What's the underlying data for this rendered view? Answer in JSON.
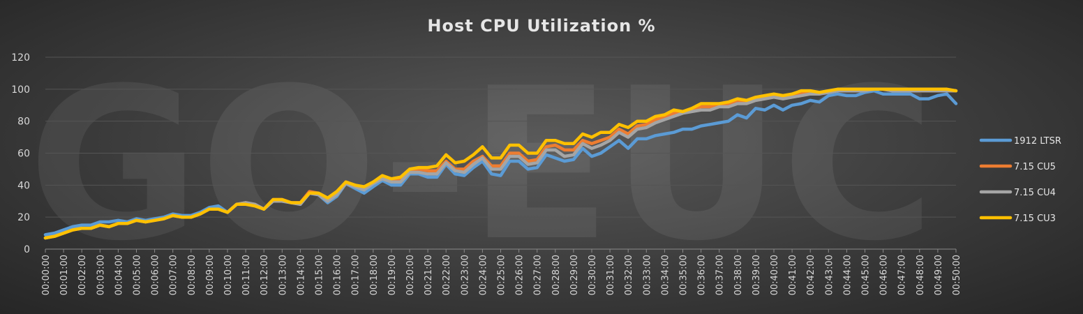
{
  "watermark": "GO-EUC",
  "chart_data": {
    "type": "line",
    "title": "Host CPU Utilization %",
    "xlabel": "",
    "ylabel": "",
    "ylim": [
      0,
      120
    ],
    "yticks": [
      0,
      20,
      40,
      60,
      80,
      100,
      120
    ],
    "grid": true,
    "legend_position": "right",
    "x_tick_labels": [
      "00:00:00",
      "00:01:00",
      "00:02:00",
      "00:03:00",
      "00:04:00",
      "00:05:00",
      "00:06:00",
      "00:07:00",
      "00:08:00",
      "00:09:00",
      "00:10:00",
      "00:11:00",
      "00:12:00",
      "00:13:00",
      "00:14:00",
      "00:15:00",
      "00:16:00",
      "00:17:00",
      "00:18:00",
      "00:19:00",
      "00:20:00",
      "00:21:00",
      "00:22:00",
      "00:23:00",
      "00:24:00",
      "00:25:00",
      "00:26:00",
      "00:27:00",
      "00:28:00",
      "00:29:00",
      "00:30:00",
      "00:31:00",
      "00:32:00",
      "00:33:00",
      "00:34:00",
      "00:35:00",
      "00:36:00",
      "00:37:00",
      "00:38:00",
      "00:39:00",
      "00:40:00",
      "00:41:00",
      "00:42:00",
      "00:43:00",
      "00:44:00",
      "00:45:00",
      "00:46:00",
      "00:47:00",
      "00:48:00",
      "00:49:00",
      "00:50:00"
    ],
    "points_per_minute": 2,
    "series": [
      {
        "name": "1912 LTSR",
        "color": "#5b9bd5",
        "values": [
          9,
          10,
          12,
          14,
          15,
          15,
          17,
          17,
          18,
          17,
          19,
          18,
          19,
          20,
          22,
          21,
          21,
          23,
          26,
          27,
          23,
          28,
          29,
          28,
          25,
          30,
          30,
          29,
          28,
          35,
          34,
          29,
          33,
          41,
          38,
          35,
          39,
          43,
          40,
          40,
          47,
          47,
          45,
          45,
          53,
          47,
          46,
          51,
          55,
          47,
          46,
          55,
          55,
          50,
          51,
          59,
          57,
          55,
          56,
          63,
          58,
          60,
          64,
          68,
          63,
          69,
          69,
          71,
          72,
          73,
          75,
          75,
          77,
          78,
          79,
          80,
          84,
          82,
          88,
          87,
          90,
          87,
          90,
          91,
          93,
          92,
          96,
          97,
          96,
          96,
          98,
          99,
          97,
          97,
          97,
          97,
          94,
          94,
          96,
          97,
          91
        ]
      },
      {
        "name": "7.15 CU5",
        "color": "#ed7d31",
        "values": [
          7,
          8,
          10,
          12,
          13,
          13,
          15,
          14,
          16,
          16,
          18,
          17,
          18,
          19,
          21,
          20,
          20,
          22,
          25,
          25,
          23,
          28,
          29,
          28,
          25,
          31,
          31,
          29,
          29,
          36,
          35,
          31,
          35,
          42,
          40,
          38,
          42,
          45,
          43,
          44,
          49,
          50,
          49,
          49,
          55,
          50,
          50,
          55,
          58,
          52,
          52,
          60,
          60,
          55,
          56,
          64,
          65,
          62,
          62,
          68,
          66,
          68,
          70,
          75,
          72,
          77,
          78,
          81,
          83,
          85,
          86,
          87,
          89,
          89,
          90,
          91,
          93,
          92,
          94,
          95,
          96,
          95,
          96,
          97,
          98,
          97,
          98,
          99,
          99,
          99,
          99,
          100,
          100,
          99,
          99,
          99,
          99,
          99,
          99,
          99,
          99
        ]
      },
      {
        "name": "7.15 CU4",
        "color": "#a5a5a5",
        "values": [
          7,
          8,
          10,
          12,
          13,
          13,
          15,
          14,
          16,
          16,
          18,
          17,
          18,
          19,
          21,
          20,
          20,
          22,
          25,
          25,
          23,
          28,
          29,
          28,
          25,
          30,
          30,
          29,
          28,
          35,
          34,
          30,
          34,
          41,
          39,
          37,
          41,
          44,
          42,
          42,
          48,
          48,
          47,
          47,
          54,
          49,
          48,
          53,
          57,
          50,
          50,
          58,
          58,
          53,
          54,
          62,
          62,
          58,
          59,
          66,
          63,
          65,
          68,
          73,
          70,
          75,
          76,
          79,
          81,
          83,
          85,
          86,
          87,
          87,
          89,
          89,
          91,
          91,
          93,
          94,
          95,
          94,
          95,
          96,
          97,
          97,
          98,
          99,
          99,
          99,
          99,
          100,
          100,
          99,
          99,
          99,
          99,
          99,
          99,
          99,
          99
        ]
      },
      {
        "name": "7.15 CU3",
        "color": "#ffc000",
        "values": [
          7,
          8,
          10,
          12,
          13,
          13,
          15,
          14,
          16,
          16,
          18,
          17,
          18,
          19,
          21,
          20,
          20,
          22,
          25,
          25,
          23,
          28,
          28,
          27,
          25,
          31,
          31,
          29,
          29,
          35,
          35,
          32,
          36,
          42,
          40,
          39,
          42,
          46,
          44,
          45,
          50,
          51,
          51,
          52,
          59,
          54,
          55,
          59,
          64,
          57,
          57,
          65,
          65,
          60,
          60,
          68,
          68,
          66,
          66,
          72,
          70,
          73,
          73,
          78,
          76,
          80,
          80,
          83,
          84,
          87,
          86,
          88,
          91,
          91,
          91,
          92,
          94,
          93,
          95,
          96,
          97,
          96,
          97,
          99,
          99,
          98,
          99,
          100,
          100,
          100,
          100,
          100,
          100,
          100,
          100,
          100,
          100,
          100,
          100,
          100,
          99
        ]
      }
    ]
  }
}
